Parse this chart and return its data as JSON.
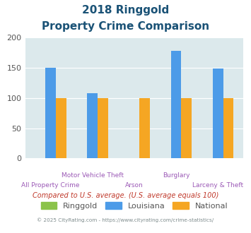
{
  "title_line1": "2018 Ringgold",
  "title_line2": "Property Crime Comparison",
  "categories": [
    "All Property Crime",
    "Motor Vehicle Theft",
    "Arson",
    "Burglary",
    "Larceny & Theft"
  ],
  "x_labels_row1": [
    "",
    "Motor Vehicle Theft",
    "",
    "Burglary",
    ""
  ],
  "x_labels_row2": [
    "All Property Crime",
    "",
    "Arson",
    "",
    "Larceny & Theft"
  ],
  "ringgold": [
    0,
    0,
    0,
    0,
    0
  ],
  "louisiana": [
    150,
    108,
    0,
    178,
    148
  ],
  "national": [
    100,
    100,
    100,
    100,
    100
  ],
  "bar_color_ringgold": "#8bc34a",
  "bar_color_louisiana": "#4c9be8",
  "bar_color_national": "#f5a623",
  "bg_color": "#dce9ec",
  "ylim": [
    0,
    200
  ],
  "yticks": [
    0,
    50,
    100,
    150,
    200
  ],
  "footer_text1": "Compared to U.S. average. (U.S. average equals 100)",
  "footer_text2": "© 2025 CityRating.com - https://www.cityrating.com/crime-statistics/",
  "title_color": "#1a5276",
  "footer1_color": "#c0392b",
  "footer2_color": "#7f8c8d",
  "label_color": "#9b59b6",
  "legend_labels": [
    "Ringgold",
    "Louisiana",
    "National"
  ],
  "bar_width": 0.25
}
